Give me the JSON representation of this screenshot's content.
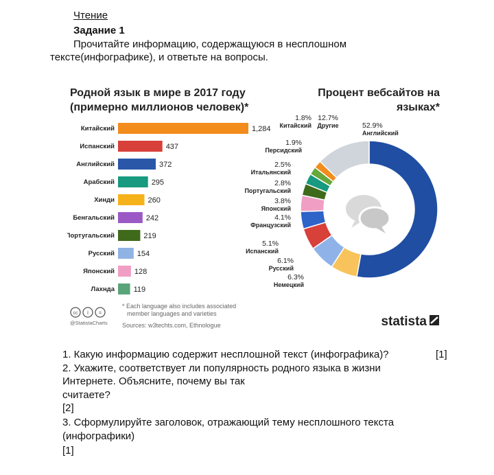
{
  "header": {
    "section": "Чтение",
    "task": "Задание 1",
    "instruction_line1": "Прочитайте информацию, содержащуюся в несплошном",
    "instruction_line2": "тексте(инфографике), и ответьте на вопросы."
  },
  "chart_data": [
    {
      "type": "bar",
      "orientation": "horizontal",
      "title_line1": "Родной язык в мире в 2017 году",
      "title_line2": "(примерно миллионов человек)*",
      "categories": [
        "Китайский",
        "Испанский",
        "Английский",
        "Арабский",
        "Хинди",
        "Бенгальский",
        "Португальский",
        "Русский",
        "Японский",
        "Лахнда"
      ],
      "values": [
        1284,
        437,
        372,
        295,
        260,
        242,
        219,
        154,
        128,
        119
      ],
      "value_labels": [
        "1,284",
        "437",
        "372",
        "295",
        "260",
        "242",
        "219",
        "154",
        "128",
        "119"
      ],
      "colors": [
        "#f28c1c",
        "#d8403a",
        "#2a57a8",
        "#179a7f",
        "#f6b21b",
        "#9b59c6",
        "#3f6a1b",
        "#8fb3e3",
        "#f19ec4",
        "#5aa47a"
      ]
    },
    {
      "type": "pie",
      "style": "donut",
      "title_line1": "Процент вебсайтов на",
      "title_line2": "языках*",
      "center_icon": "speech-bubbles-icon",
      "slices": [
        {
          "name": "Английский",
          "value": 52.9,
          "label": "52.9%",
          "color": "#1f4ea3"
        },
        {
          "name": "Немецкий",
          "value": 6.3,
          "label": "6.3%",
          "color": "#f7c35a"
        },
        {
          "name": "Русский",
          "value": 6.1,
          "label": "6.1%",
          "color": "#8fb3e8"
        },
        {
          "name": "Испанский",
          "value": 5.1,
          "label": "5.1%",
          "color": "#d8403a"
        },
        {
          "name": "Французский",
          "value": 4.1,
          "label": "4.1%",
          "color": "#2e63c8"
        },
        {
          "name": "Японский",
          "value": 3.8,
          "label": "3.8%",
          "color": "#f19ec4"
        },
        {
          "name": "Португальский",
          "value": 2.8,
          "label": "2.8%",
          "color": "#3f6a1b"
        },
        {
          "name": "Итальянский",
          "value": 2.5,
          "label": "2.5%",
          "color": "#179a7f"
        },
        {
          "name": "Персидский",
          "value": 1.9,
          "label": "1.9%",
          "color": "#66a83a"
        },
        {
          "name": "Китайский",
          "value": 1.8,
          "label": "1.8%",
          "color": "#f28c1c"
        },
        {
          "name": "Другие",
          "value": 12.7,
          "label": "12.7%",
          "color": "#cfd5da"
        }
      ]
    }
  ],
  "footer": {
    "note_line1": "* Each language also includes associated",
    "note_line2": "member languages and varieties",
    "brand_small": "@StatistaCharts",
    "sources": "Sources: w3techts.com, Ethnologue",
    "brand": "statista"
  },
  "questions": [
    {
      "line1": "1. Какую информацию содержит несплошной текст (инфографика)?",
      "points": "[1]"
    },
    {
      "line1": "2. Укажите, соответствует ли популярность родного языка в жизни",
      "line2": "Интернете. Объясните, почему вы так",
      "line3": "считаете?",
      "points": "[2]"
    },
    {
      "line1": "3. Сформулируйте заголовок, отражающий тему несплошного текста",
      "line2": "(инфографики)",
      "points": "[1]"
    }
  ]
}
